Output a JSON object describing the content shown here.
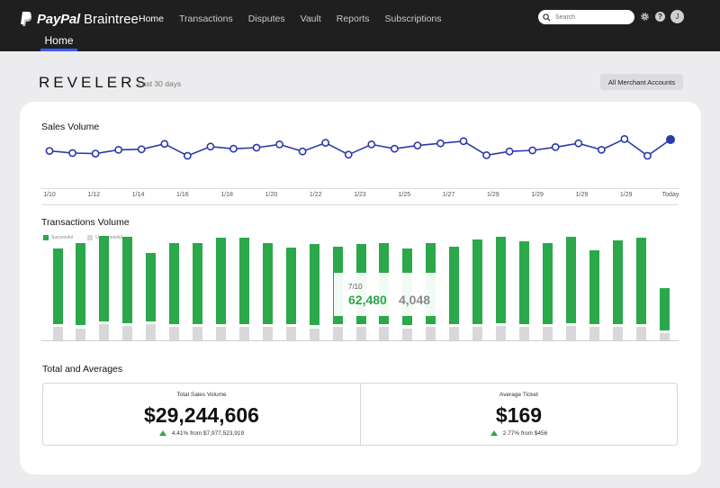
{
  "app": {
    "brand_name": "PayPal",
    "brand_sub": "Braintree",
    "brand_color": "#ffffff",
    "accent_color": "#3b5bfd"
  },
  "nav": {
    "items": [
      "Home",
      "Transactions",
      "Disputes",
      "Vault",
      "Reports",
      "Subscriptions"
    ],
    "active": "Home",
    "search_placeholder": "Search",
    "avatar_initial": "J",
    "help_glyph": "?"
  },
  "subtab": {
    "label": "Home"
  },
  "header": {
    "merchant": "REVELERS",
    "period": "Last 30 days",
    "accounts_button": "All Merchant Accounts"
  },
  "sales": {
    "title": "Sales Volume",
    "color": "#2b3aa8"
  },
  "transactions": {
    "title": "Transactions Volume",
    "legend": [
      "Successful",
      "Unsuccessful"
    ],
    "colors": {
      "successful": "#2aa84a",
      "unsuccessful": "#d8d8d8"
    },
    "tooltip": {
      "date": "7/10",
      "successful": "62,480",
      "unsuccessful": "4,048"
    }
  },
  "totals": {
    "title": "Total and  Averages",
    "cards": [
      {
        "label": "Total Sales Volume",
        "value": "$29,244,606",
        "change": "4.41% from $7,977,523,919"
      },
      {
        "label": "Average Ticket",
        "value": "$169",
        "change": "2.77% from $456"
      }
    ]
  },
  "chart_data": [
    {
      "type": "line",
      "x_tick_labels": [
        "1/10",
        "1/12",
        "1/14",
        "1/16",
        "1/18",
        "1/20",
        "1/22",
        "1/23",
        "1/25",
        "1/27",
        "1/29",
        "1/29",
        "1/29",
        "1/29",
        "Today"
      ],
      "values": [
        5.4,
        5.0,
        4.9,
        5.6,
        5.7,
        6.7,
        4.5,
        6.2,
        5.8,
        6.0,
        6.6,
        5.3,
        6.9,
        4.7,
        6.6,
        5.8,
        6.4,
        6.8,
        7.2,
        4.6,
        5.3,
        5.5,
        6.1,
        6.8,
        5.6,
        7.6,
        4.5,
        7.5
      ],
      "ylim": [
        0,
        10
      ]
    },
    {
      "type": "bar",
      "series": [
        {
          "name": "Successful",
          "values": [
            62,
            68,
            71,
            71,
            57,
            67,
            67,
            71,
            71,
            67,
            63,
            67,
            64,
            66,
            67,
            63,
            67,
            64,
            70,
            71,
            68,
            67,
            71,
            61,
            69,
            71,
            35
          ]
        },
        {
          "name": "Unsuccessful",
          "values": [
            11,
            10,
            13,
            12,
            13,
            11,
            11,
            11,
            11,
            11,
            11,
            10,
            11,
            11,
            11,
            10,
            11,
            11,
            11,
            12,
            11,
            11,
            12,
            11,
            11,
            11,
            6
          ]
        }
      ],
      "ylim": [
        0,
        100
      ]
    }
  ]
}
